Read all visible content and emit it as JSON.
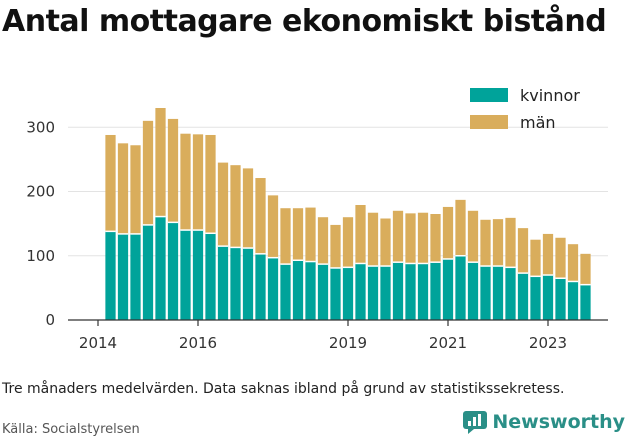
{
  "title": "Antal mottagare ekonomiskt bistånd",
  "note": "Tre månaders medelvärden. Data saknas ibland på grund av statistikssekretess.",
  "source": "Källa: Socialstyrelsen",
  "brand": "Newsworthy",
  "colors": {
    "kvinnor": "#00a39a",
    "man": "#d9ad5c",
    "grid": "#e3e3e3",
    "axis": "#333333",
    "brand": "#2a8f87"
  },
  "chart_data": {
    "type": "bar",
    "stacked": true,
    "title": "Antal mottagare ekonomiskt bistånd",
    "xlabel": "",
    "ylabel": "",
    "ylim": [
      0,
      330
    ],
    "yticks": [
      0,
      100,
      200,
      300
    ],
    "xticks": [
      "2014",
      "2016",
      "2019",
      "2021",
      "2023"
    ],
    "xtick_positions": [
      2014.0,
      2016.0,
      2019.0,
      2021.0,
      2023.0
    ],
    "x": [
      2014.25,
      2014.5,
      2014.75,
      2015.0,
      2015.25,
      2015.5,
      2015.75,
      2016.0,
      2016.25,
      2016.5,
      2016.75,
      2017.0,
      2017.25,
      2017.5,
      2017.75,
      2018.0,
      2018.25,
      2018.5,
      2018.75,
      2019.0,
      2019.25,
      2019.5,
      2019.75,
      2020.0,
      2020.25,
      2020.5,
      2020.75,
      2021.0,
      2021.25,
      2021.5,
      2021.75,
      2022.0,
      2022.25,
      2022.5,
      2022.75,
      2023.0,
      2023.25,
      2023.5,
      2023.75
    ],
    "grid": true,
    "legend": "top-right",
    "series": [
      {
        "name": "kvinnor",
        "values": [
          138,
          134,
          134,
          148,
          161,
          152,
          140,
          140,
          135,
          115,
          113,
          112,
          103,
          97,
          87,
          93,
          91,
          87,
          81,
          82,
          88,
          84,
          84,
          90,
          88,
          88,
          90,
          95,
          100,
          90,
          84,
          84,
          82,
          73,
          68,
          70,
          65,
          60,
          55
        ]
      },
      {
        "name": "män",
        "values": [
          150,
          141,
          138,
          162,
          169,
          161,
          150,
          149,
          153,
          130,
          128,
          124,
          118,
          97,
          87,
          81,
          84,
          73,
          67,
          78,
          91,
          83,
          74,
          80,
          78,
          79,
          75,
          81,
          87,
          80,
          72,
          73,
          77,
          70,
          57,
          64,
          63,
          58,
          48
        ]
      }
    ]
  }
}
